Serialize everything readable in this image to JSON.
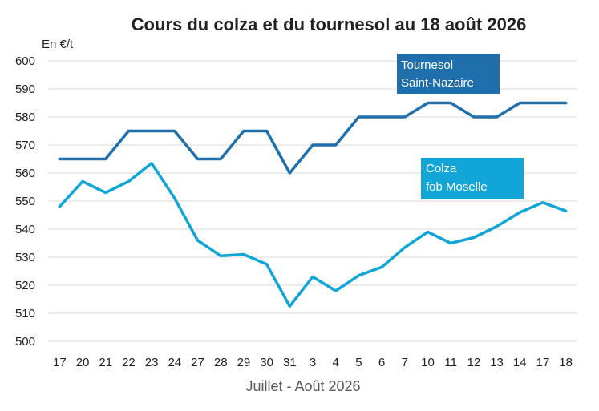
{
  "chart_data": {
    "type": "line",
    "title": "Cours du colza et du tournesol au 18 août 2026",
    "unit_label": "En €/t",
    "xlabel": "Juillet - Août 2026",
    "ylim": [
      500,
      600
    ],
    "yticks": [
      500,
      510,
      520,
      530,
      540,
      550,
      560,
      570,
      580,
      590,
      600
    ],
    "categories": [
      "17",
      "20",
      "21",
      "22",
      "23",
      "24",
      "27",
      "28",
      "29",
      "30",
      "31",
      "3",
      "4",
      "5",
      "6",
      "7",
      "10",
      "11",
      "12",
      "13",
      "14",
      "17",
      "18"
    ],
    "grid": true,
    "series": [
      {
        "name_lines": [
          "Tournesol",
          "Saint-Nazaire"
        ],
        "color": "#1f6fad",
        "values": [
          565,
          565,
          565,
          575,
          575,
          575,
          565,
          565,
          575,
          575,
          560,
          570,
          570,
          580,
          580,
          580,
          585,
          585,
          580,
          580,
          585,
          585,
          585
        ]
      },
      {
        "name_lines": [
          "Colza",
          "fob Moselle"
        ],
        "color": "#12a6d8",
        "values": [
          548,
          557,
          553,
          557,
          563.5,
          551,
          536,
          530.5,
          531,
          527.5,
          512.5,
          523,
          518,
          523.5,
          526.5,
          533.5,
          539,
          535,
          537,
          541,
          546,
          549.5,
          546.5
        ]
      }
    ]
  }
}
